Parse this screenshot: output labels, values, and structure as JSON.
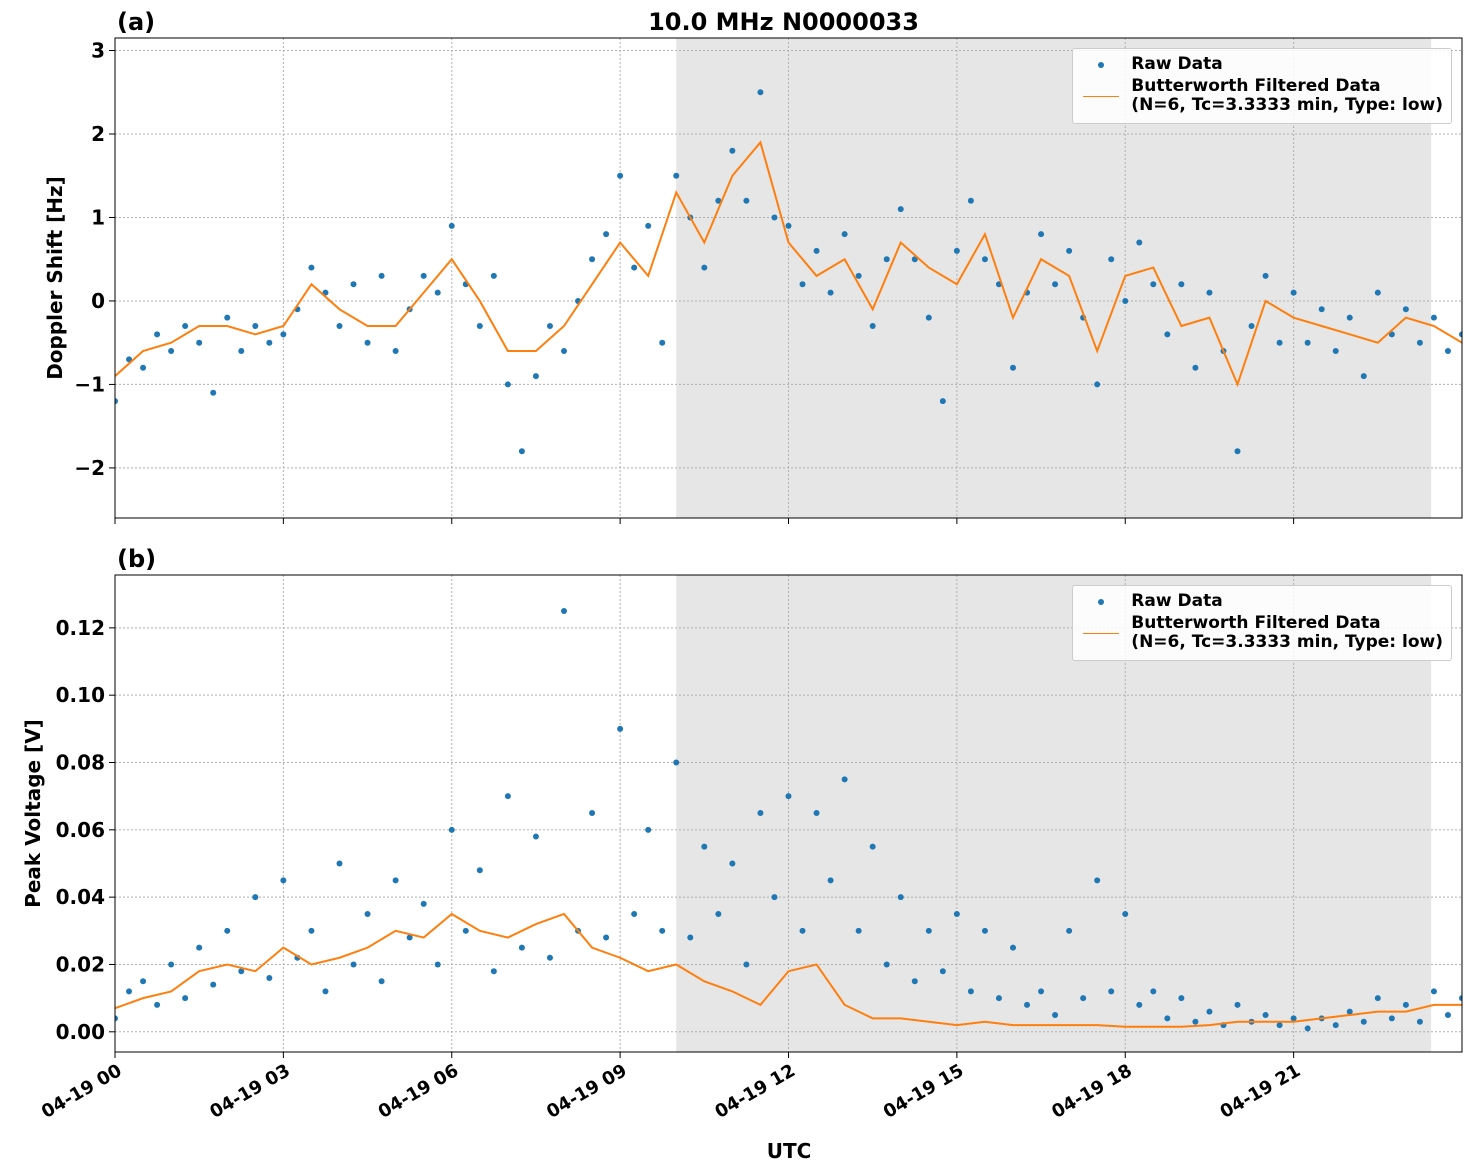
{
  "chart_data": [
    {
      "type": "scatter",
      "panel_label": "(a)",
      "title": "10.0 MHz N0000033",
      "y_label": "Doppler Shift [Hz]",
      "xlim": [
        0,
        24
      ],
      "ylim": [
        -2.6,
        3.15
      ],
      "yticks": [
        {
          "value": -2,
          "label": "−2"
        },
        {
          "value": -1,
          "label": "−1"
        },
        0,
        1,
        2,
        3
      ],
      "grid": true,
      "shaded_span": [
        10,
        23.45
      ],
      "legend": "upper right",
      "series": [
        {
          "name": "Raw Data",
          "style": "markers",
          "color": "#1f77b4",
          "x": [
            0,
            0.25,
            0.5,
            0.75,
            1,
            1.25,
            1.5,
            1.75,
            2,
            2.25,
            2.5,
            2.75,
            3,
            3.25,
            3.5,
            3.75,
            4,
            4.25,
            4.5,
            4.75,
            5,
            5.25,
            5.5,
            5.75,
            6,
            6.25,
            6.5,
            6.75,
            7,
            7.25,
            7.5,
            7.75,
            8,
            8.25,
            8.5,
            8.75,
            9,
            9.25,
            9.5,
            9.75,
            10,
            10.25,
            10.5,
            10.75,
            11,
            11.25,
            11.5,
            11.75,
            12,
            12.25,
            12.5,
            12.75,
            13,
            13.25,
            13.5,
            13.75,
            14,
            14.25,
            14.5,
            14.75,
            15,
            15.25,
            15.5,
            15.75,
            16,
            16.25,
            16.5,
            16.75,
            17,
            17.25,
            17.5,
            17.75,
            18,
            18.25,
            18.5,
            18.75,
            19,
            19.25,
            19.5,
            19.75,
            20,
            20.25,
            20.5,
            20.75,
            21,
            21.25,
            21.5,
            21.75,
            22,
            22.25,
            22.5,
            22.75,
            23,
            23.25,
            23.5,
            23.75,
            24
          ],
          "values": [
            -1.2,
            -0.7,
            -0.8,
            -0.4,
            -0.6,
            -0.3,
            -0.5,
            -1.1,
            -0.2,
            -0.6,
            -0.3,
            -0.5,
            -0.4,
            -0.1,
            0.4,
            0.1,
            -0.3,
            0.2,
            -0.5,
            0.3,
            -0.6,
            -0.1,
            0.3,
            0.1,
            0.9,
            0.2,
            -0.3,
            0.3,
            -1.0,
            -1.8,
            -0.9,
            -0.3,
            -0.6,
            0.0,
            0.5,
            0.8,
            1.5,
            0.4,
            0.9,
            -0.5,
            1.5,
            1.0,
            0.4,
            1.2,
            1.8,
            1.2,
            2.5,
            1.0,
            0.9,
            0.2,
            0.6,
            0.1,
            0.8,
            0.3,
            -0.3,
            0.5,
            1.1,
            0.5,
            -0.2,
            -1.2,
            0.6,
            1.2,
            0.5,
            0.2,
            -0.8,
            0.1,
            0.8,
            0.2,
            0.6,
            -0.2,
            -1.0,
            0.5,
            0.0,
            0.7,
            0.2,
            -0.4,
            0.2,
            -0.8,
            0.1,
            -0.6,
            -1.8,
            -0.3,
            0.3,
            -0.5,
            0.1,
            -0.5,
            -0.1,
            -0.6,
            -0.2,
            -0.9,
            0.1,
            -0.4,
            -0.1,
            -0.5,
            -0.2,
            -0.6,
            -0.4
          ]
        },
        {
          "name": "Butterworth Filtered Data\n(N=6, Tc=3.3333 min, Type: low)",
          "style": "line",
          "color": "#ff7f0e",
          "x": [
            0,
            0.5,
            1,
            1.5,
            2,
            2.5,
            3,
            3.5,
            4,
            4.5,
            5,
            5.5,
            6,
            6.5,
            7,
            7.5,
            8,
            8.5,
            9,
            9.5,
            10,
            10.5,
            11,
            11.5,
            12,
            12.5,
            13,
            13.5,
            14,
            14.5,
            15,
            15.5,
            16,
            16.5,
            17,
            17.5,
            18,
            18.5,
            19,
            19.5,
            20,
            20.5,
            21,
            21.5,
            22,
            22.5,
            23,
            23.5,
            24
          ],
          "values": [
            -0.9,
            -0.6,
            -0.5,
            -0.3,
            -0.3,
            -0.4,
            -0.3,
            0.2,
            -0.1,
            -0.3,
            -0.3,
            0.1,
            0.5,
            0.0,
            -0.6,
            -0.6,
            -0.3,
            0.2,
            0.7,
            0.3,
            1.3,
            0.7,
            1.5,
            1.9,
            0.7,
            0.3,
            0.5,
            -0.1,
            0.7,
            0.4,
            0.2,
            0.8,
            -0.2,
            0.5,
            0.3,
            -0.6,
            0.3,
            0.4,
            -0.3,
            -0.2,
            -1.0,
            0.0,
            -0.2,
            -0.3,
            -0.4,
            -0.5,
            -0.2,
            -0.3,
            -0.5
          ]
        }
      ]
    },
    {
      "type": "scatter",
      "panel_label": "(b)",
      "y_label": "Peak Voltage [V]",
      "x_label": "UTC",
      "xlim": [
        0,
        24
      ],
      "ylim": [
        -0.006,
        0.1357
      ],
      "xticks": [
        {
          "value": 0,
          "label": "04-19 00"
        },
        {
          "value": 3,
          "label": "04-19 03"
        },
        {
          "value": 6,
          "label": "04-19 06"
        },
        {
          "value": 9,
          "label": "04-19 09"
        },
        {
          "value": 12,
          "label": "04-19 12"
        },
        {
          "value": 15,
          "label": "04-19 15"
        },
        {
          "value": 18,
          "label": "04-19 18"
        },
        {
          "value": 21,
          "label": "04-19 21"
        }
      ],
      "yticks": [
        {
          "value": 0,
          "label": "0.00"
        },
        0.02,
        0.04,
        0.06,
        0.08,
        {
          "value": 0.1,
          "label": "0.10"
        },
        0.12
      ],
      "grid": true,
      "shaded_span": [
        10,
        23.45
      ],
      "legend": "upper right",
      "series": [
        {
          "name": "Raw Data",
          "style": "markers",
          "color": "#1f77b4",
          "x": [
            0,
            0.25,
            0.5,
            0.75,
            1,
            1.25,
            1.5,
            1.75,
            2,
            2.25,
            2.5,
            2.75,
            3,
            3.25,
            3.5,
            3.75,
            4,
            4.25,
            4.5,
            4.75,
            5,
            5.25,
            5.5,
            5.75,
            6,
            6.25,
            6.5,
            6.75,
            7,
            7.25,
            7.5,
            7.75,
            8,
            8.25,
            8.5,
            8.75,
            9,
            9.25,
            9.5,
            9.75,
            10,
            10.25,
            10.5,
            10.75,
            11,
            11.25,
            11.5,
            11.75,
            12,
            12.25,
            12.5,
            12.75,
            13,
            13.25,
            13.5,
            13.75,
            14,
            14.25,
            14.5,
            14.75,
            15,
            15.25,
            15.5,
            15.75,
            16,
            16.25,
            16.5,
            16.75,
            17,
            17.25,
            17.5,
            17.75,
            18,
            18.25,
            18.5,
            18.75,
            19,
            19.25,
            19.5,
            19.75,
            20,
            20.25,
            20.5,
            20.75,
            21,
            21.25,
            21.5,
            21.75,
            22,
            22.25,
            22.5,
            22.75,
            23,
            23.25,
            23.5,
            23.75,
            24
          ],
          "values": [
            0.004,
            0.012,
            0.015,
            0.008,
            0.02,
            0.01,
            0.025,
            0.014,
            0.03,
            0.018,
            0.04,
            0.016,
            0.045,
            0.022,
            0.03,
            0.012,
            0.05,
            0.02,
            0.035,
            0.015,
            0.045,
            0.028,
            0.038,
            0.02,
            0.06,
            0.03,
            0.048,
            0.018,
            0.07,
            0.025,
            0.058,
            0.022,
            0.125,
            0.03,
            0.065,
            0.028,
            0.09,
            0.035,
            0.06,
            0.03,
            0.08,
            0.028,
            0.055,
            0.035,
            0.05,
            0.02,
            0.065,
            0.04,
            0.07,
            0.03,
            0.065,
            0.045,
            0.075,
            0.03,
            0.055,
            0.02,
            0.04,
            0.015,
            0.03,
            0.018,
            0.035,
            0.012,
            0.03,
            0.01,
            0.025,
            0.008,
            0.012,
            0.005,
            0.03,
            0.01,
            0.045,
            0.012,
            0.035,
            0.008,
            0.012,
            0.004,
            0.01,
            0.003,
            0.006,
            0.002,
            0.008,
            0.003,
            0.005,
            0.002,
            0.004,
            0.001,
            0.004,
            0.002,
            0.006,
            0.003,
            0.01,
            0.004,
            0.008,
            0.003,
            0.012,
            0.005,
            0.01
          ]
        },
        {
          "name": "Butterworth Filtered Data\n(N=6, Tc=3.3333 min, Type: low)",
          "style": "line",
          "color": "#ff7f0e",
          "x": [
            0,
            0.5,
            1,
            1.5,
            2,
            2.5,
            3,
            3.5,
            4,
            4.5,
            5,
            5.5,
            6,
            6.5,
            7,
            7.5,
            8,
            8.5,
            9,
            9.5,
            10,
            10.5,
            11,
            11.5,
            12,
            12.5,
            13,
            13.5,
            14,
            14.5,
            15,
            15.5,
            16,
            16.5,
            17,
            17.5,
            18,
            18.5,
            19,
            19.5,
            20,
            20.5,
            21,
            21.5,
            22,
            22.5,
            23,
            23.5,
            24
          ],
          "values": [
            0.007,
            0.01,
            0.012,
            0.018,
            0.02,
            0.018,
            0.025,
            0.02,
            0.022,
            0.025,
            0.03,
            0.028,
            0.035,
            0.03,
            0.028,
            0.032,
            0.035,
            0.025,
            0.022,
            0.018,
            0.02,
            0.015,
            0.012,
            0.008,
            0.018,
            0.02,
            0.008,
            0.004,
            0.004,
            0.003,
            0.002,
            0.003,
            0.002,
            0.002,
            0.002,
            0.002,
            0.0015,
            0.0015,
            0.0015,
            0.002,
            0.003,
            0.003,
            0.003,
            0.004,
            0.005,
            0.006,
            0.006,
            0.008,
            0.008
          ]
        }
      ]
    }
  ]
}
